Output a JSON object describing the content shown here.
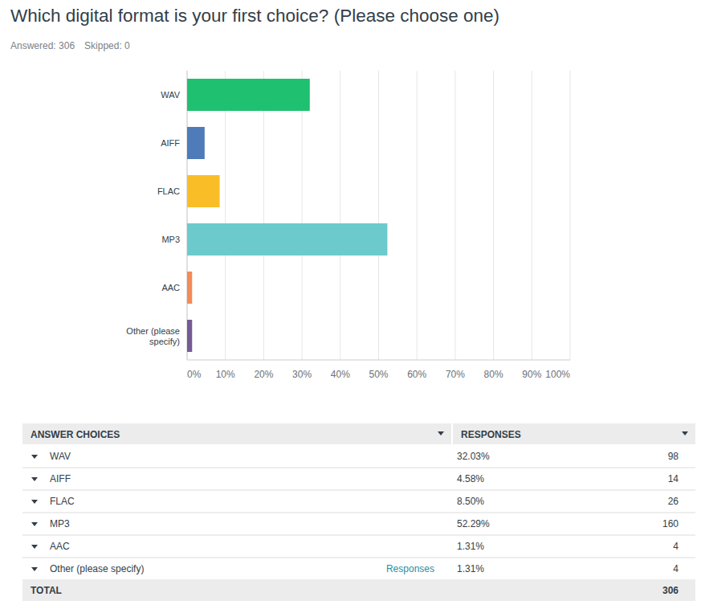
{
  "chart_data": {
    "type": "bar",
    "orientation": "horizontal",
    "title": "Which digital format is your first choice? (Please choose one)",
    "categories": [
      "WAV",
      "AIFF",
      "FLAC",
      "MP3",
      "AAC",
      "Other (please specify)"
    ],
    "values": [
      32.03,
      4.58,
      8.5,
      52.29,
      1.31,
      1.31
    ],
    "colors": [
      "#1fc070",
      "#4f7cb8",
      "#f9bd28",
      "#6ccacd",
      "#f48a58",
      "#755b96"
    ],
    "xlim": [
      0,
      100
    ],
    "xticks": [
      {
        "value": 0,
        "label": "0%"
      },
      {
        "value": 10,
        "label": "10%"
      },
      {
        "value": 20,
        "label": "20%"
      },
      {
        "value": 30,
        "label": "30%"
      },
      {
        "value": 40,
        "label": "40%"
      },
      {
        "value": 50,
        "label": "50%"
      },
      {
        "value": 60,
        "label": "60%"
      },
      {
        "value": 70,
        "label": "70%"
      },
      {
        "value": 80,
        "label": "80%"
      },
      {
        "value": 90,
        "label": "90%"
      },
      {
        "value": 100,
        "label": "100%"
      }
    ],
    "grid": true
  },
  "summary": {
    "answered": "Answered: 306",
    "skipped": "Skipped: 0"
  },
  "table": {
    "columns": [
      "ANSWER CHOICES",
      "RESPONSES"
    ],
    "rows": [
      {
        "choice": "WAV",
        "percent": "32.03%",
        "count": "98"
      },
      {
        "choice": "AIFF",
        "percent": "4.58%",
        "count": "14"
      },
      {
        "choice": "FLAC",
        "percent": "8.50%",
        "count": "26"
      },
      {
        "choice": "MP3",
        "percent": "52.29%",
        "count": "160"
      },
      {
        "choice": "AAC",
        "percent": "1.31%",
        "count": "4"
      },
      {
        "choice": "Other (please specify)",
        "percent": "1.31%",
        "count": "4",
        "link": "Responses"
      }
    ],
    "total": {
      "label": "TOTAL",
      "count": "306"
    }
  }
}
